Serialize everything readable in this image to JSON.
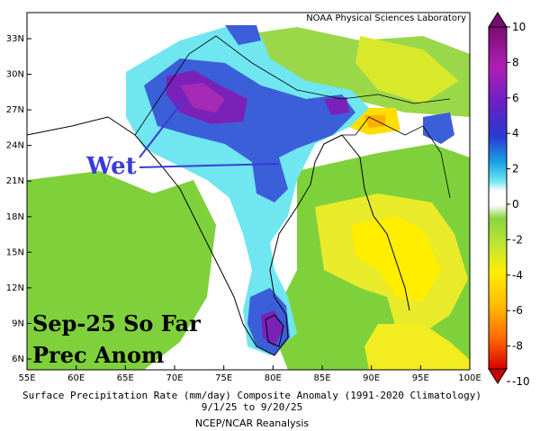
{
  "credit": "NOAA Physical Sciences Laboratory",
  "annotation": "Wet",
  "overlay": {
    "line1": "Sep-25 So Far",
    "line2": "Prec Anom"
  },
  "caption": {
    "line1": "Surface Precipitation Rate (mm/day) Composite Anomaly (1991-2020 Climatology)",
    "line2": "9/1/25  to 9/20/25",
    "line3": "NCEP/NCAR Reanalysis"
  },
  "axes": {
    "x_ticks": [
      "55E",
      "60E",
      "65E",
      "70E",
      "75E",
      "80E",
      "85E",
      "90E",
      "95E",
      "100E"
    ],
    "y_ticks": [
      "33N",
      "30N",
      "27N",
      "24N",
      "21N",
      "18N",
      "15N",
      "12N",
      "9N",
      "6N"
    ]
  },
  "colorbar": {
    "labels": [
      "10",
      "8",
      "6",
      "4",
      "2",
      "0",
      "-2",
      "-4",
      "-6",
      "-8",
      "-10"
    ],
    "colors": [
      "#5a0f6e",
      "#8a1a9a",
      "#b02ab8",
      "#6b1fb3",
      "#2f2fc8",
      "#3b6fe0",
      "#1fb6e6",
      "#6fe6f0",
      "#ffffff",
      "#ffffff",
      "#9ad84a",
      "#c8e63a",
      "#e8ea2a",
      "#ffee00",
      "#ffc400",
      "#ff9600",
      "#ff6a00",
      "#ff3a00",
      "#e81800",
      "#c80000"
    ]
  },
  "colors": {
    "wet_label": "#3b3bd6",
    "land_low": "#7fd13b",
    "dry": "#ffee00"
  }
}
